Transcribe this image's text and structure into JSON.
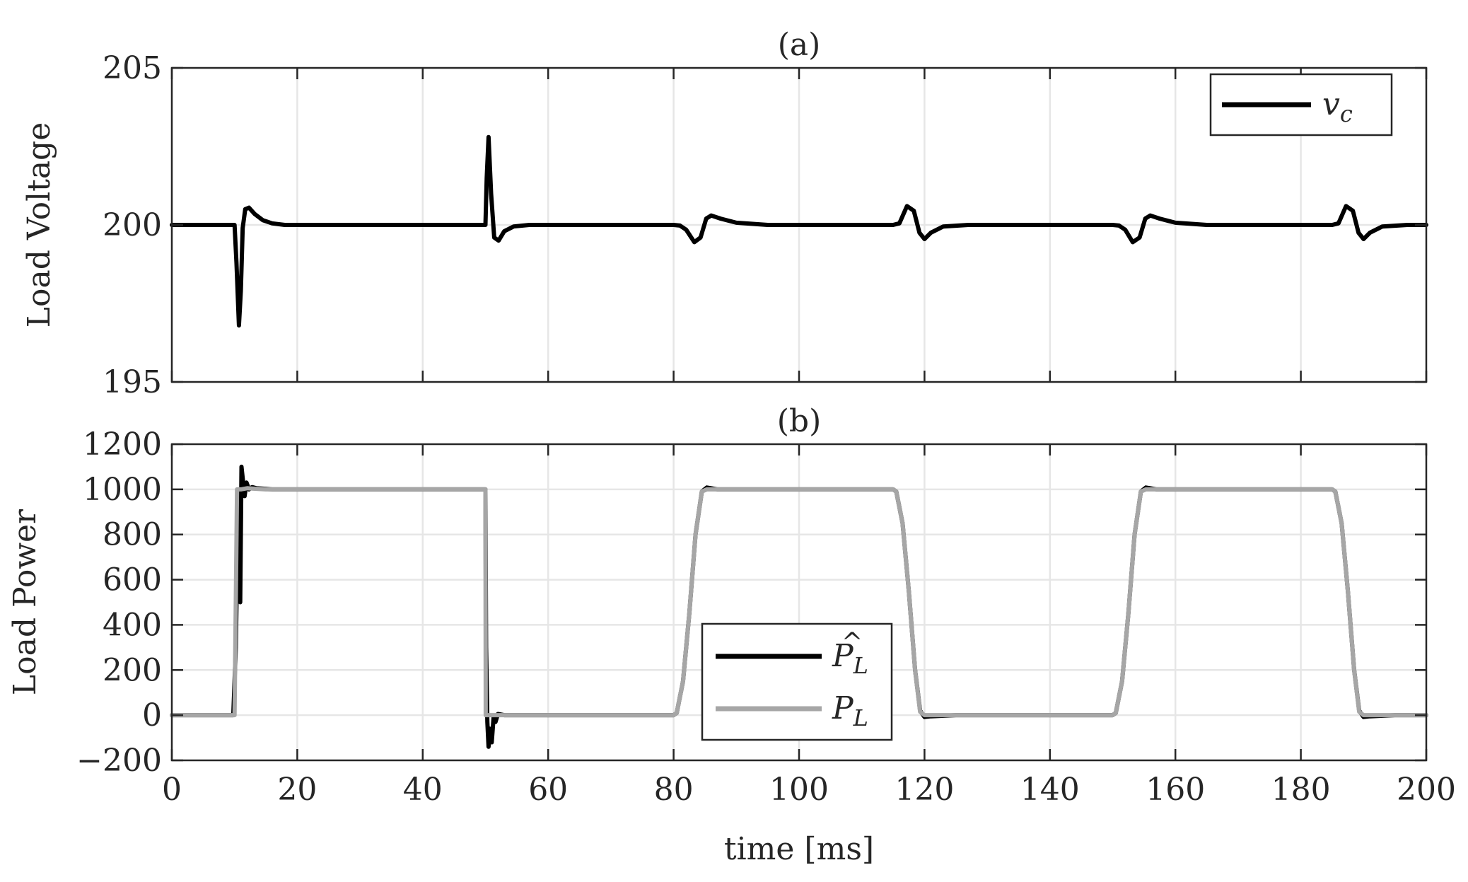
{
  "colors": {
    "black": "#000000",
    "gray": "#a6a6a6",
    "grid": "#e6e6e6",
    "axis": "#262626"
  },
  "xlabel": "time [ms]",
  "xticks": [
    "0",
    "20",
    "40",
    "60",
    "80",
    "100",
    "120",
    "140",
    "160",
    "180",
    "200"
  ],
  "chart_data": [
    {
      "type": "line",
      "title": "(a)",
      "xlabel": "",
      "ylabel": "Load Voltage",
      "xlim": [
        0,
        200
      ],
      "ylim": [
        195,
        205
      ],
      "grid": true,
      "yticks": [
        "195",
        "200",
        "205"
      ],
      "legend": {
        "position": "top-right",
        "entries": [
          {
            "sym": "v",
            "sub": "c"
          }
        ]
      },
      "series": [
        {
          "name": "v_c",
          "color": "#000000",
          "x": [
            0,
            10,
            10.3,
            10.7,
            11.0,
            11.3,
            11.7,
            12.3,
            13.2,
            14.5,
            16,
            18,
            22,
            30,
            50,
            50.2,
            50.5,
            50.9,
            51.4,
            52.1,
            53,
            54.5,
            57,
            62,
            70,
            80,
            81,
            82,
            83.3,
            84.3,
            85.2,
            86,
            87.5,
            90,
            95,
            105,
            115,
            116,
            117.2,
            118.3,
            119.2,
            120,
            121,
            123,
            127,
            135,
            150,
            151,
            152,
            153.2,
            154.3,
            155.2,
            156,
            157.5,
            160,
            165,
            175,
            185,
            186,
            187.2,
            188.3,
            189.2,
            190,
            191,
            193,
            197,
            200
          ],
          "values": [
            200,
            200,
            198.8,
            196.8,
            197.9,
            199.9,
            200.5,
            200.55,
            200.35,
            200.15,
            200.05,
            200.0,
            200.0,
            200.0,
            200,
            201.5,
            202.8,
            201.0,
            199.6,
            199.5,
            199.8,
            199.95,
            200.0,
            200.0,
            200.0,
            200,
            199.98,
            199.85,
            199.45,
            199.6,
            200.2,
            200.3,
            200.2,
            200.07,
            200.0,
            200.0,
            200,
            200.05,
            200.6,
            200.45,
            199.75,
            199.55,
            199.75,
            199.95,
            200.0,
            200.0,
            200,
            199.98,
            199.85,
            199.45,
            199.6,
            200.2,
            200.3,
            200.2,
            200.07,
            200.0,
            200.0,
            200,
            200.05,
            200.6,
            200.45,
            199.75,
            199.55,
            199.75,
            199.95,
            200.0,
            200.0
          ]
        }
      ]
    },
    {
      "type": "line",
      "title": "(b)",
      "xlabel": "time [ms]",
      "ylabel": "Load Power",
      "xlim": [
        0,
        200
      ],
      "ylim": [
        -200,
        1200
      ],
      "grid": true,
      "yticks": [
        "−200",
        "0",
        "200",
        "400",
        "600",
        "800",
        "1000",
        "1200"
      ],
      "legend": {
        "position": "bottom-center",
        "entries": [
          {
            "sym": "P",
            "sub": "L",
            "hat": "^"
          },
          {
            "sym": "P",
            "sub": "L"
          }
        ]
      },
      "series": [
        {
          "name": "P̂_L",
          "color": "#000000",
          "x": [
            0,
            9.8,
            10.2,
            10.6,
            10.9,
            11.1,
            11.3,
            11.6,
            11.9,
            12.3,
            12.8,
            13.5,
            14.5,
            16,
            20,
            50,
            50.1,
            50.3,
            50.5,
            50.7,
            51,
            51.3,
            51.6,
            52,
            53,
            55,
            60,
            80,
            80.5,
            81.5,
            82.5,
            83.5,
            84.5,
            85.3,
            86,
            87,
            90,
            115,
            115.5,
            116.5,
            117.5,
            118.5,
            119.3,
            120,
            121,
            125,
            150,
            150.5,
            151.5,
            152.5,
            153.5,
            154.5,
            155.3,
            156,
            157,
            160,
            185,
            185.5,
            186.5,
            187.5,
            188.5,
            189.3,
            190,
            191,
            195,
            200
          ],
          "values": [
            0,
            0,
            300,
            1000,
            500,
            1100,
            1050,
            970,
            1030,
            1000,
            1010,
            1005,
            1003,
            1000,
            1000,
            1000,
            300,
            -30,
            -140,
            -60,
            -120,
            -10,
            -30,
            5,
            0,
            0,
            0,
            0,
            10,
            150,
            450,
            800,
            990,
            1008,
            1005,
            1000,
            1000,
            1000,
            990,
            850,
            550,
            200,
            20,
            -8,
            -5,
            0,
            0,
            10,
            150,
            450,
            800,
            990,
            1008,
            1005,
            1000,
            1000,
            1000,
            990,
            850,
            550,
            200,
            20,
            -8,
            -5,
            0,
            0
          ]
        },
        {
          "name": "P_L",
          "color": "#a6a6a6",
          "x": [
            0,
            10,
            10.4,
            11,
            12,
            13,
            15,
            20,
            50,
            50.05,
            50.4,
            60,
            80,
            80.5,
            81.5,
            82.5,
            83.5,
            84.5,
            85.3,
            86,
            90,
            115,
            115.5,
            116.5,
            117.5,
            118.5,
            119.3,
            120,
            125,
            150,
            150.5,
            151.5,
            152.5,
            153.5,
            154.5,
            155.3,
            156,
            160,
            185,
            185.5,
            186.5,
            187.5,
            188.5,
            189.3,
            190,
            195,
            200
          ],
          "values": [
            0,
            0,
            1000,
            1000,
            1005,
            1003,
            1000,
            1000,
            1000,
            0,
            0,
            0,
            0,
            10,
            150,
            450,
            800,
            990,
            1000,
            1000,
            1000,
            1000,
            990,
            850,
            550,
            200,
            15,
            0,
            0,
            0,
            10,
            150,
            450,
            800,
            990,
            1000,
            1000,
            1000,
            1000,
            990,
            850,
            550,
            200,
            15,
            0,
            0,
            0
          ]
        }
      ]
    }
  ]
}
